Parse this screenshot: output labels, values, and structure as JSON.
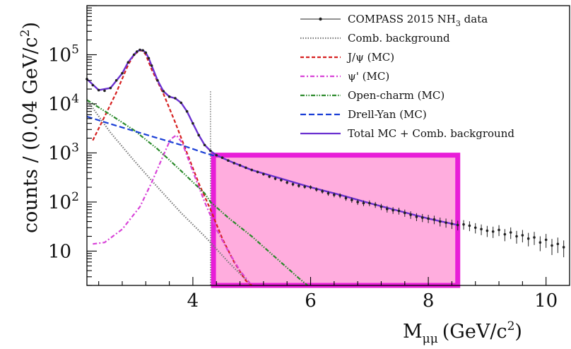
{
  "chart_data": {
    "type": "line",
    "x_axis": {
      "label": "M",
      "label_subscript": "μμ",
      "label_units": "(GeV/c",
      "label_units_sup": "2",
      "label_units_close": ")",
      "range": [
        2.2,
        10.4
      ],
      "ticks": [
        {
          "value": 4,
          "label": "4"
        },
        {
          "value": 6,
          "label": "6"
        },
        {
          "value": 8,
          "label": "8"
        },
        {
          "value": 10,
          "label": "10"
        }
      ]
    },
    "y_axis": {
      "label_main": "counts / (0.04 GeV/c",
      "label_sup": "2",
      "label_close": ")",
      "scale": "log",
      "range": [
        2,
        1000000
      ],
      "ticks": [
        {
          "value": 10,
          "label": "10",
          "exp": ""
        },
        {
          "value": 100,
          "label": "10",
          "exp": "2"
        },
        {
          "value": 1000,
          "label": "10",
          "exp": "3"
        },
        {
          "value": 10000,
          "label": "10",
          "exp": "4"
        },
        {
          "value": 100000,
          "label": "10",
          "exp": "5"
        }
      ]
    },
    "legend": {
      "placement": "top-right",
      "entries": [
        {
          "label": "COMPASS 2015 NH",
          "sub": "3",
          "suffix": " data"
        },
        {
          "label": "Comb. background",
          "sub": "",
          "suffix": ""
        },
        {
          "label": "J/ψ (MC)",
          "sub": "",
          "suffix": ""
        },
        {
          "label": "ψ' (MC)",
          "sub": "",
          "suffix": ""
        },
        {
          "label": "Open-charm (MC)",
          "sub": "",
          "suffix": ""
        },
        {
          "label": "Drell-Yan (MC)",
          "sub": "",
          "suffix": ""
        },
        {
          "label": "Total MC + Comb. background",
          "sub": "",
          "suffix": ""
        }
      ]
    },
    "highlight_region": {
      "x_from": 4.35,
      "x_to": 8.5,
      "y_from": 2,
      "y_to": 900,
      "fill": "#ff9fd8",
      "stroke": "#e81ed8"
    },
    "cut_line_x": 4.3,
    "series": [
      {
        "name": "Comb. background",
        "color": "#7a7a7a",
        "dash": "1.5,2",
        "x": [
          2.2,
          2.6,
          3.0,
          3.4,
          3.8,
          4.2,
          4.3,
          4.6,
          5.0
        ],
        "y": [
          12000,
          2600,
          700,
          200,
          60,
          20,
          15,
          6,
          2
        ]
      },
      {
        "name": "J/ψ (MC)",
        "color": "#d62020",
        "dash": "5,3",
        "x": [
          2.3,
          2.5,
          2.7,
          2.9,
          3.0,
          3.1,
          3.15,
          3.2,
          3.3,
          3.5,
          3.7,
          3.9,
          4.1,
          4.3,
          4.5,
          4.7,
          4.9,
          5.0
        ],
        "y": [
          1800,
          5500,
          17000,
          62000,
          100000,
          122000,
          120000,
          100000,
          50000,
          16000,
          4200,
          1000,
          240,
          70,
          18,
          6,
          2.5,
          2
        ]
      },
      {
        "name": "ψ' (MC)",
        "color": "#d843d8",
        "dash": "6,3,2,3",
        "x": [
          2.3,
          2.5,
          2.8,
          3.1,
          3.3,
          3.5,
          3.62,
          3.72,
          3.82,
          4.0,
          4.2,
          4.4,
          4.6,
          4.8,
          5.0
        ],
        "y": [
          14,
          15,
          28,
          80,
          250,
          900,
          1900,
          2300,
          1600,
          420,
          100,
          28,
          10,
          4,
          2
        ]
      },
      {
        "name": "Open-charm (MC)",
        "color": "#2a8a2a",
        "dash": "6,2,1.5,2,1.5,2",
        "x": [
          2.2,
          2.6,
          3.0,
          3.4,
          3.8,
          4.2,
          4.3,
          4.6,
          5.0,
          5.4,
          5.8,
          5.95
        ],
        "y": [
          12000,
          6000,
          2900,
          1200,
          430,
          150,
          100,
          48,
          20,
          7.5,
          2.8,
          2
        ]
      },
      {
        "name": "Drell-Yan (MC)",
        "color": "#1a3fd6",
        "dash": "8,4",
        "x": [
          2.2,
          2.6,
          3.0,
          3.4,
          3.8,
          4.2,
          4.4
        ],
        "y": [
          5500,
          3900,
          2800,
          2000,
          1450,
          1000,
          850
        ]
      },
      {
        "name": "Total MC + Comb. background",
        "color": "#6a30d0",
        "dash": "",
        "x": [
          2.2,
          2.4,
          2.6,
          2.8,
          2.9,
          3.0,
          3.05,
          3.1,
          3.15,
          3.2,
          3.25,
          3.3,
          3.4,
          3.5,
          3.6,
          3.7,
          3.8,
          3.9,
          4.0,
          4.1,
          4.2,
          4.3,
          4.4,
          4.6,
          4.8,
          5.0,
          5.5,
          6.0,
          6.5,
          7.0,
          7.5,
          8.0,
          8.5
        ],
        "y": [
          32000,
          19000,
          21000,
          42000,
          70000,
          100000,
          116000,
          125000,
          123000,
          110000,
          85000,
          60000,
          30000,
          18000,
          14000,
          13000,
          10500,
          7000,
          4000,
          2300,
          1450,
          1100,
          900,
          700,
          560,
          450,
          300,
          200,
          140,
          95,
          66,
          46,
          34
        ]
      }
    ],
    "data_points": {
      "name": "COMPASS 2015 NH3 data",
      "color": "#222222",
      "x": [
        2.2,
        2.3,
        2.4,
        2.5,
        2.6,
        2.7,
        2.8,
        2.9,
        3.0,
        3.05,
        3.1,
        3.15,
        3.2,
        3.25,
        3.3,
        3.4,
        3.5,
        3.6,
        3.7,
        3.8,
        3.9,
        4.0,
        4.1,
        4.2,
        4.3,
        4.4,
        4.5,
        4.6,
        4.7,
        4.8,
        4.9,
        5.0,
        5.1,
        5.2,
        5.3,
        5.4,
        5.5,
        5.6,
        5.7,
        5.8,
        5.9,
        6.0,
        6.1,
        6.2,
        6.3,
        6.4,
        6.5,
        6.6,
        6.7,
        6.8,
        6.9,
        7.0,
        7.1,
        7.2,
        7.3,
        7.4,
        7.5,
        7.6,
        7.7,
        7.8,
        7.9,
        8.0,
        8.1,
        8.2,
        8.3,
        8.4,
        8.5,
        8.6,
        8.7,
        8.8,
        8.9,
        9.0,
        9.1,
        9.2,
        9.3,
        9.4,
        9.5,
        9.6,
        9.7,
        9.8,
        9.9,
        10.0,
        10.1,
        10.2,
        10.3
      ],
      "y": [
        32000,
        24000,
        19000,
        18500,
        21000,
        30000,
        42000,
        70000,
        100000,
        116000,
        126000,
        123000,
        110000,
        85000,
        60000,
        30000,
        18000,
        14000,
        13000,
        10500,
        7000,
        4000,
        2300,
        1450,
        1100,
        900,
        800,
        700,
        620,
        560,
        500,
        450,
        410,
        370,
        330,
        300,
        280,
        250,
        230,
        215,
        205,
        200,
        180,
        165,
        150,
        140,
        135,
        120,
        110,
        100,
        95,
        95,
        88,
        80,
        72,
        68,
        66,
        60,
        55,
        50,
        48,
        46,
        44,
        40,
        38,
        36,
        34,
        35,
        33,
        30,
        28,
        26,
        25,
        27,
        22,
        24,
        20,
        21,
        18,
        19,
        15,
        17,
        13,
        14,
        12
      ]
    }
  }
}
